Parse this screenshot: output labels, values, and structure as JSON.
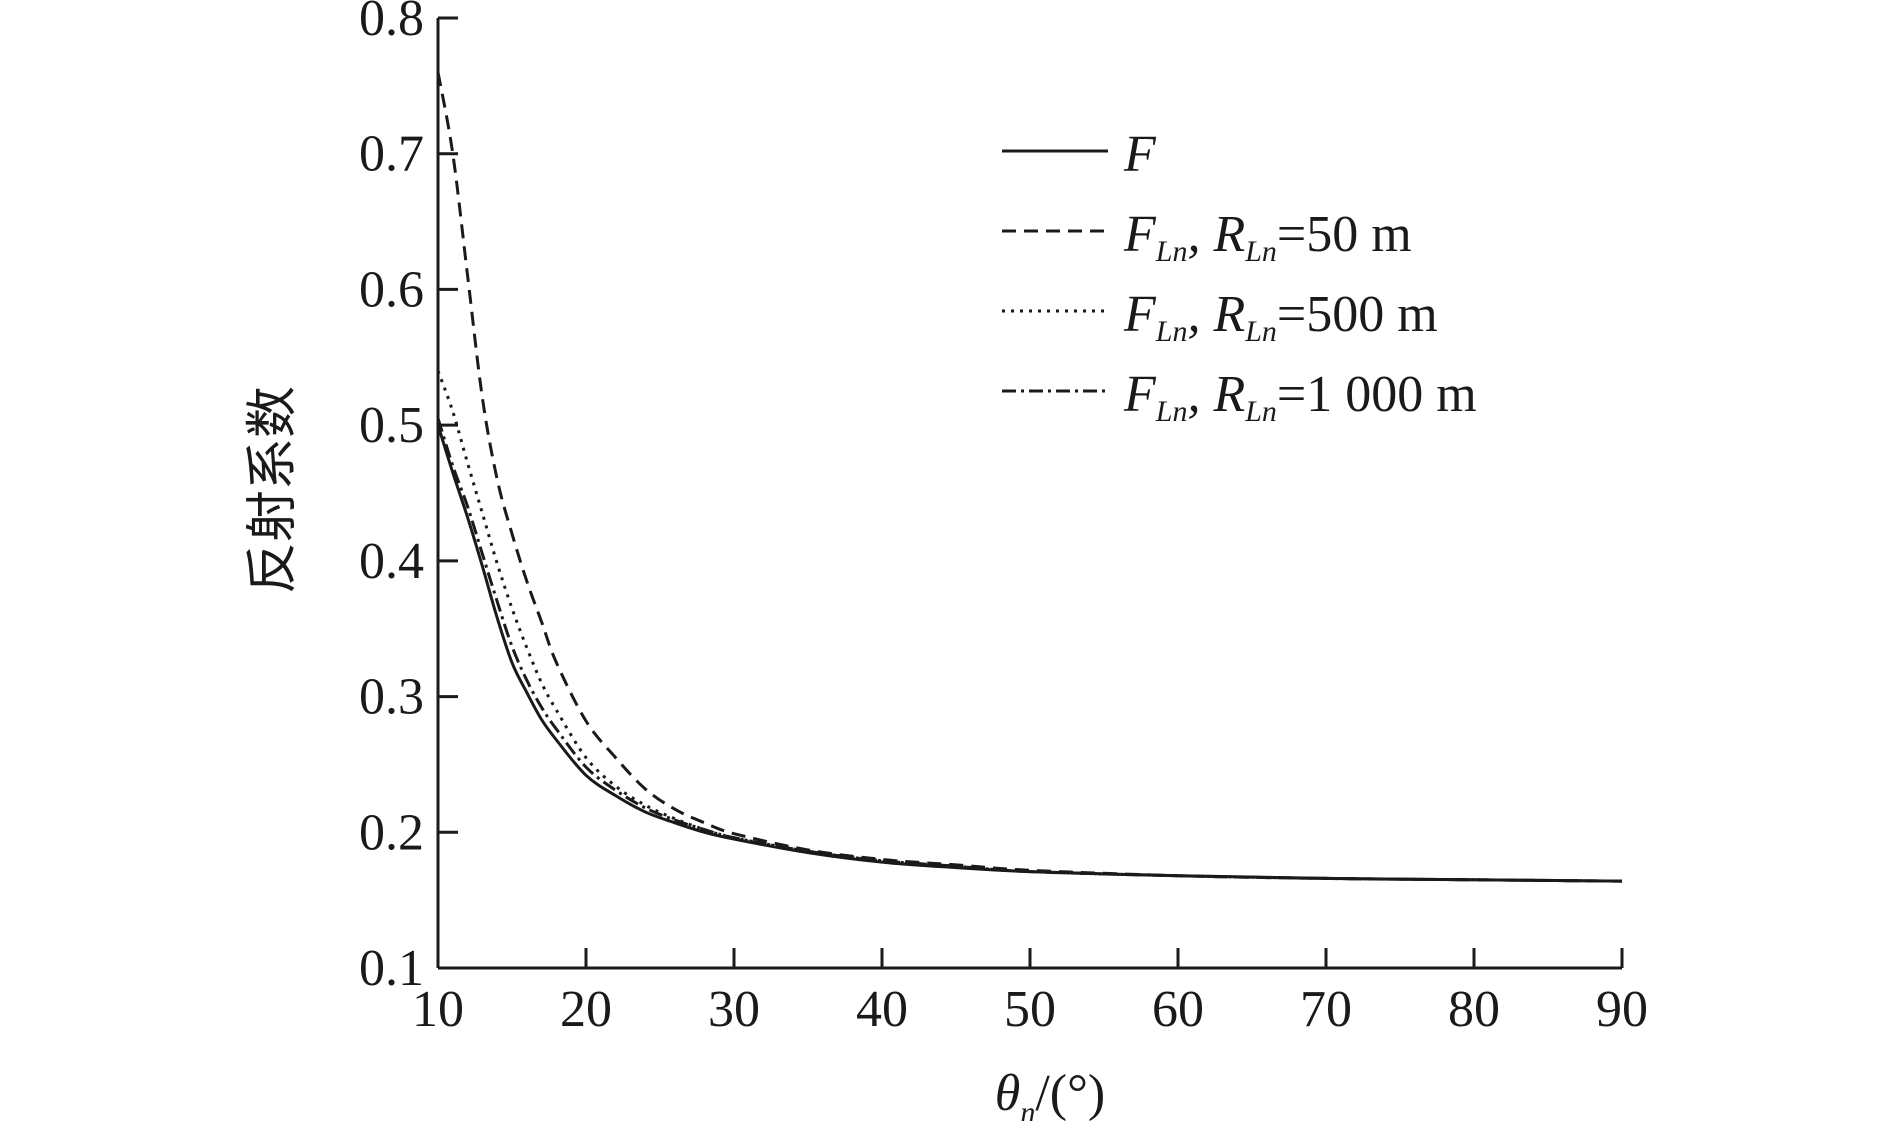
{
  "chart_data": {
    "type": "line",
    "title": "",
    "xlabel": {
      "symbol": "θ",
      "sub": "n",
      "unit": "/(°)"
    },
    "ylabel": "反射系数",
    "xlim": [
      10,
      90
    ],
    "ylim": [
      0.1,
      0.8
    ],
    "xticks": [
      10,
      20,
      30,
      40,
      50,
      60,
      70,
      80,
      90
    ],
    "yticks": [
      0.1,
      0.2,
      0.3,
      0.4,
      0.5,
      0.6,
      0.7,
      0.8
    ],
    "xtick_labels": [
      "10",
      "20",
      "30",
      "40",
      "50",
      "60",
      "70",
      "80",
      "90"
    ],
    "ytick_labels": [
      "0.1",
      "0.2",
      "0.3",
      "0.4",
      "0.5",
      "0.6",
      "0.7",
      "0.8"
    ],
    "grid": false,
    "legend_position": "top-right",
    "x": [
      10,
      11,
      12,
      13,
      14,
      15,
      16,
      17,
      18,
      20,
      22,
      24,
      26,
      28,
      30,
      35,
      40,
      45,
      50,
      60,
      70,
      80,
      90
    ],
    "series": [
      {
        "name": "F",
        "legend": {
          "main": "F",
          "sub": "",
          "rest": ""
        },
        "dash": "",
        "values": [
          0.5,
          0.465,
          0.432,
          0.396,
          0.358,
          0.325,
          0.303,
          0.283,
          0.268,
          0.242,
          0.227,
          0.215,
          0.207,
          0.2,
          0.195,
          0.185,
          0.178,
          0.174,
          0.171,
          0.168,
          0.166,
          0.165,
          0.164
        ]
      },
      {
        "name": "FLn, RLn=50 m",
        "legend": {
          "main": "F",
          "sub": "Ln",
          "rest": ", R",
          "sub2": "Ln",
          "tail": "=50 m"
        },
        "dash": "14,8",
        "values": [
          0.76,
          0.7,
          0.61,
          0.52,
          0.46,
          0.42,
          0.385,
          0.355,
          0.325,
          0.282,
          0.255,
          0.232,
          0.217,
          0.207,
          0.199,
          0.187,
          0.18,
          0.176,
          0.172,
          0.168,
          0.166,
          0.165,
          0.164
        ]
      },
      {
        "name": "FLn, RLn=500 m",
        "legend": {
          "main": "F",
          "sub": "Ln",
          "rest": ", R",
          "sub2": "Ln",
          "tail": "=500 m"
        },
        "dash": "3,6",
        "values": [
          0.54,
          0.51,
          0.472,
          0.435,
          0.398,
          0.365,
          0.336,
          0.31,
          0.29,
          0.255,
          0.234,
          0.22,
          0.21,
          0.202,
          0.196,
          0.186,
          0.179,
          0.175,
          0.171,
          0.168,
          0.166,
          0.165,
          0.164
        ]
      },
      {
        "name": "FLn, RLn=1 000 m",
        "legend": {
          "main": "F",
          "sub": "Ln",
          "rest": ", R",
          "sub2": "Ln",
          "tail": "=1 000 m"
        },
        "dash": "14,5,3,5",
        "values": [
          0.505,
          0.47,
          0.44,
          0.405,
          0.37,
          0.337,
          0.312,
          0.292,
          0.276,
          0.248,
          0.231,
          0.218,
          0.209,
          0.202,
          0.196,
          0.186,
          0.179,
          0.175,
          0.171,
          0.168,
          0.166,
          0.165,
          0.164
        ]
      }
    ]
  }
}
